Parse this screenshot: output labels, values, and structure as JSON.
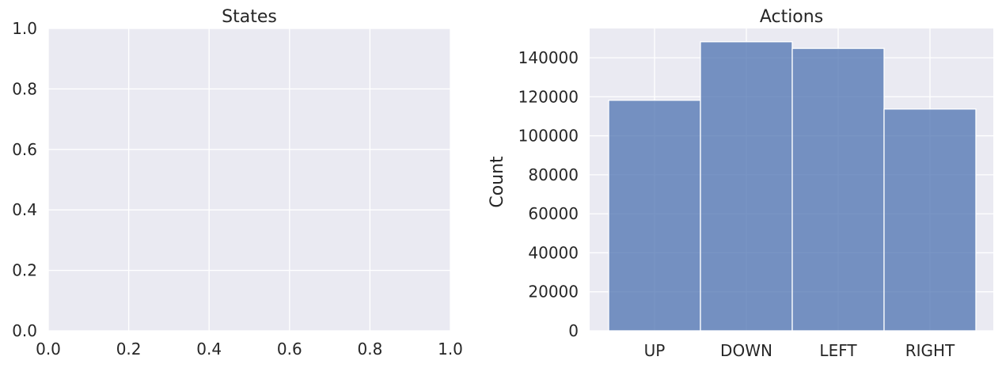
{
  "chart_data": [
    {
      "type": "histogram",
      "title": "States",
      "xlabel": "",
      "ylabel": "",
      "xlim": [
        0.0,
        1.0
      ],
      "ylim": [
        0.0,
        1.0
      ],
      "xticks": [
        "0.0",
        "0.2",
        "0.4",
        "0.6",
        "0.8",
        "1.0"
      ],
      "yticks": [
        "0.0",
        "0.2",
        "0.4",
        "0.6",
        "0.8",
        "1.0"
      ],
      "values": [],
      "grid": true
    },
    {
      "type": "bar",
      "title": "Actions",
      "xlabel": "",
      "ylabel": "Count",
      "categories": [
        "UP",
        "DOWN",
        "LEFT",
        "RIGHT"
      ],
      "values": [
        118200,
        148200,
        144800,
        113700
      ],
      "ylim": [
        0,
        155000
      ],
      "yticks": [
        "0",
        "20000",
        "40000",
        "60000",
        "80000",
        "100000",
        "120000",
        "140000"
      ],
      "grid": true,
      "color": "#4c72b0"
    }
  ]
}
